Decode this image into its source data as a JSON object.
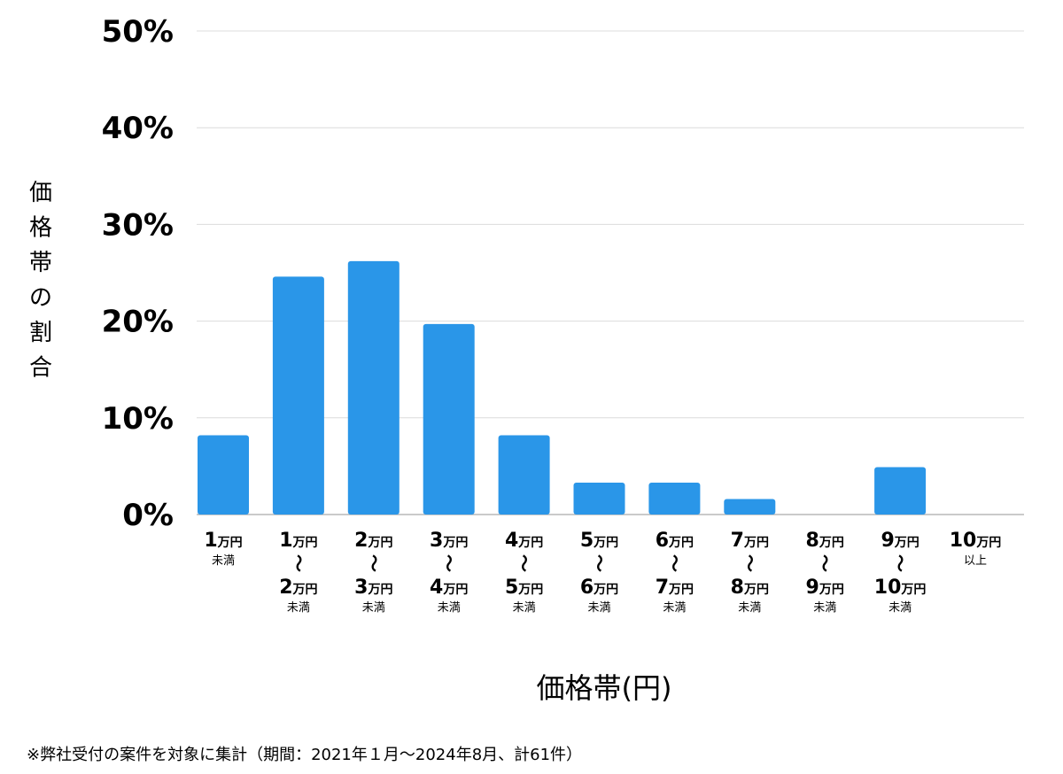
{
  "chart_data": {
    "type": "bar",
    "xlabel": "価格帯(円)",
    "ylabel": "価格帯の割合",
    "ylim": [
      0,
      50
    ],
    "yticks": [
      0,
      10,
      20,
      30,
      40,
      50
    ],
    "ytick_suffix": "%",
    "grid": true,
    "bar_color": "#2a96e8",
    "categories": [
      {
        "top": "1",
        "top_unit": "万円",
        "sub": "未満"
      },
      {
        "top": "1",
        "top_unit": "万円",
        "wave": "〜",
        "bottom": "2",
        "bottom_unit": "万円",
        "sub": "未満"
      },
      {
        "top": "2",
        "top_unit": "万円",
        "wave": "〜",
        "bottom": "3",
        "bottom_unit": "万円",
        "sub": "未満"
      },
      {
        "top": "3",
        "top_unit": "万円",
        "wave": "〜",
        "bottom": "4",
        "bottom_unit": "万円",
        "sub": "未満"
      },
      {
        "top": "4",
        "top_unit": "万円",
        "wave": "〜",
        "bottom": "5",
        "bottom_unit": "万円",
        "sub": "未満"
      },
      {
        "top": "5",
        "top_unit": "万円",
        "wave": "〜",
        "bottom": "6",
        "bottom_unit": "万円",
        "sub": "未満"
      },
      {
        "top": "6",
        "top_unit": "万円",
        "wave": "〜",
        "bottom": "7",
        "bottom_unit": "万円",
        "sub": "未満"
      },
      {
        "top": "7",
        "top_unit": "万円",
        "wave": "〜",
        "bottom": "8",
        "bottom_unit": "万円",
        "sub": "未満"
      },
      {
        "top": "8",
        "top_unit": "万円",
        "wave": "〜",
        "bottom": "9",
        "bottom_unit": "万円",
        "sub": "未満"
      },
      {
        "top": "9",
        "top_unit": "万円",
        "wave": "〜",
        "bottom": "10",
        "bottom_unit": "万円",
        "sub": "未満"
      },
      {
        "top": "10",
        "top_unit": "万円",
        "sub": "以上"
      }
    ],
    "values": [
      8.2,
      24.6,
      26.2,
      19.7,
      8.2,
      3.3,
      3.3,
      1.6,
      0,
      4.9,
      0
    ]
  },
  "footnote": "※弊社受付の案件を対象に集計（期間：2021年１月〜2024年8月、計61件）"
}
